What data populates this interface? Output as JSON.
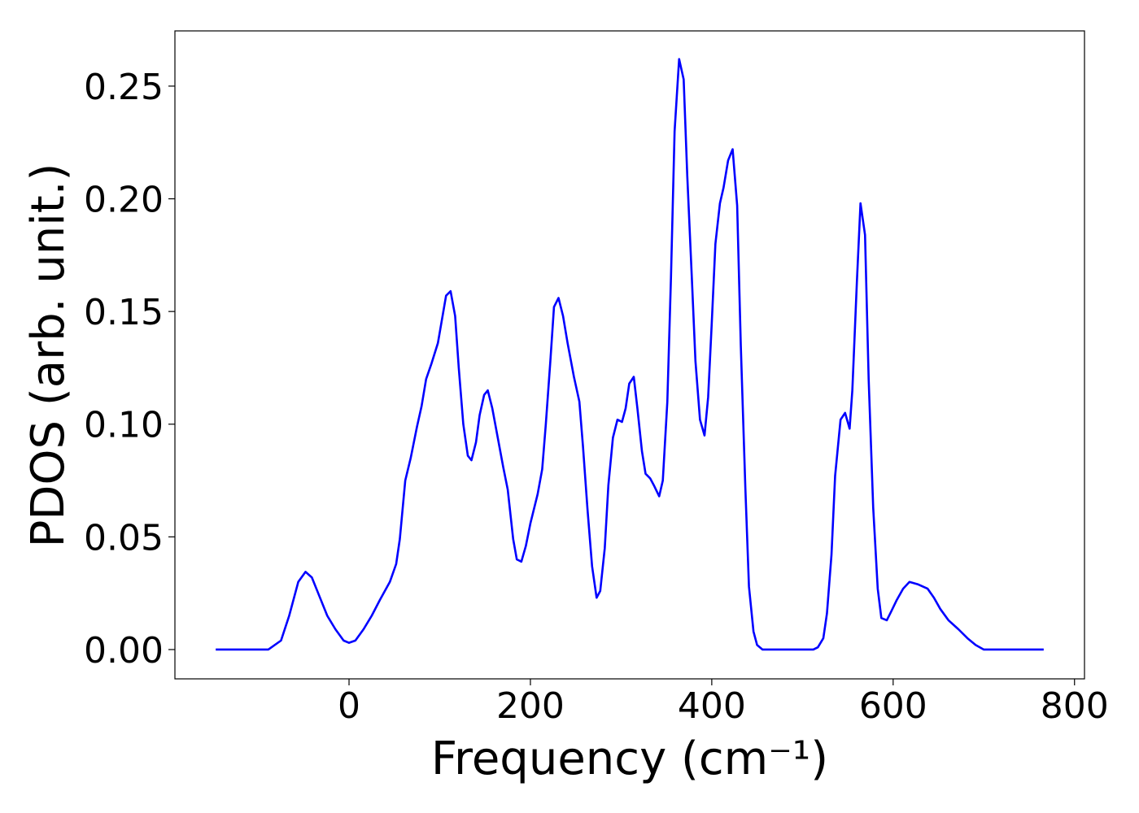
{
  "chart_data": {
    "type": "line",
    "xlabel": "Frequency (cm⁻¹)",
    "ylabel": "PDOS (arb. unit.)",
    "xlim": [
      -192,
      811
    ],
    "ylim": [
      -0.013,
      0.2745
    ],
    "xticks": [
      0,
      200,
      400,
      600,
      800
    ],
    "yticks": [
      {
        "value": 0,
        "label": "0.00"
      },
      {
        "value": 0.05,
        "label": "0.05"
      },
      {
        "value": 0.1,
        "label": "0.10"
      },
      {
        "value": 0.15,
        "label": "0.15"
      },
      {
        "value": 0.2,
        "label": "0.20"
      },
      {
        "value": 0.25,
        "label": "0.25"
      }
    ],
    "x": [
      -147,
      -89,
      -75,
      -66,
      -56,
      -48,
      -41,
      -33,
      -24,
      -15,
      -6,
      0,
      7,
      16,
      25,
      34,
      45,
      52,
      56,
      62,
      68,
      75,
      80,
      85,
      91,
      98,
      107,
      112,
      117,
      121,
      126,
      131,
      135,
      140,
      144,
      149,
      153,
      158,
      164,
      170,
      175,
      181,
      185,
      190,
      195,
      200,
      208,
      213,
      217,
      222,
      226,
      231,
      236,
      241,
      248,
      254,
      258,
      263,
      268,
      273,
      277,
      282,
      286,
      291,
      296,
      301,
      305,
      309,
      314,
      318,
      323,
      327,
      332,
      336,
      342,
      346,
      351,
      355,
      359,
      364,
      369,
      373,
      378,
      382,
      387,
      392,
      396,
      400,
      404,
      409,
      413,
      418,
      423,
      428,
      432,
      437,
      441,
      446,
      450,
      456,
      512,
      517,
      523,
      527,
      532,
      536,
      542,
      547,
      552,
      555,
      560,
      564,
      569,
      573,
      578,
      583,
      587,
      593,
      598,
      604,
      611,
      618,
      627,
      638,
      645,
      652,
      661,
      672,
      682,
      691,
      700,
      766
    ],
    "series": [
      {
        "color": "#0000ff",
        "values": [
          0,
          0,
          0.004,
          0.015,
          0.03,
          0.0345,
          0.032,
          0.024,
          0.015,
          0.009,
          0.004,
          0.003,
          0.004,
          0.009,
          0.015,
          0.022,
          0.03,
          0.038,
          0.049,
          0.075,
          0.085,
          0.099,
          0.108,
          0.12,
          0.127,
          0.136,
          0.157,
          0.159,
          0.148,
          0.125,
          0.1,
          0.086,
          0.084,
          0.092,
          0.104,
          0.113,
          0.115,
          0.107,
          0.094,
          0.081,
          0.071,
          0.049,
          0.04,
          0.039,
          0.046,
          0.056,
          0.069,
          0.08,
          0.1,
          0.128,
          0.152,
          0.156,
          0.148,
          0.136,
          0.121,
          0.11,
          0.09,
          0.062,
          0.037,
          0.023,
          0.026,
          0.045,
          0.073,
          0.094,
          0.102,
          0.101,
          0.107,
          0.118,
          0.121,
          0.107,
          0.088,
          0.078,
          0.076,
          0.073,
          0.068,
          0.075,
          0.11,
          0.165,
          0.23,
          0.262,
          0.253,
          0.21,
          0.165,
          0.128,
          0.102,
          0.095,
          0.112,
          0.145,
          0.18,
          0.198,
          0.205,
          0.217,
          0.222,
          0.197,
          0.135,
          0.072,
          0.028,
          0.008,
          0.002,
          0,
          0,
          0.001,
          0.005,
          0.016,
          0.042,
          0.077,
          0.102,
          0.105,
          0.098,
          0.115,
          0.163,
          0.198,
          0.184,
          0.12,
          0.063,
          0.027,
          0.014,
          0.013,
          0.017,
          0.022,
          0.027,
          0.03,
          0.029,
          0.027,
          0.023,
          0.018,
          0.013,
          0.009,
          0.005,
          0.002,
          0,
          0
        ]
      }
    ]
  }
}
